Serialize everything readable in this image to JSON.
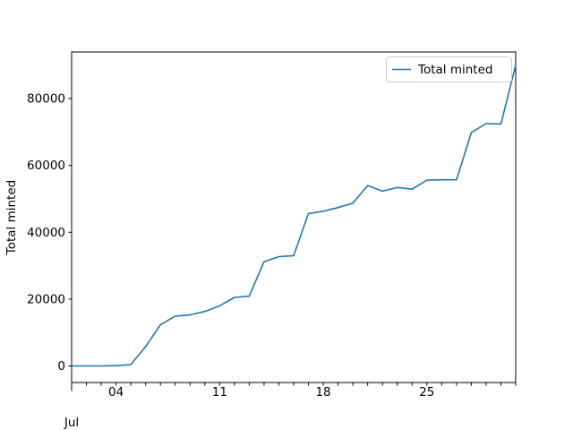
{
  "figure": {
    "background": "#ffffff",
    "ylabel": "Total minted",
    "month_label": "Jul"
  },
  "legend": {
    "label": "Total minted",
    "line_color": "#1f77b4",
    "border_color": "#cccccc",
    "position": "upper right"
  },
  "chart_data": {
    "type": "line",
    "title": "",
    "ylabel": "Total minted",
    "month_label": "Jul",
    "grid": false,
    "legend_position": "upper right",
    "line_color": "#1f77b4",
    "xlim_days": [
      1,
      31
    ],
    "ylim": [
      -4950,
      93950
    ],
    "y_ticks": [
      0,
      20000,
      40000,
      60000,
      80000
    ],
    "y_tick_labels": [
      "0",
      "20000",
      "40000",
      "60000",
      "80000"
    ],
    "x_minor_tick_days": [
      1,
      2,
      3,
      4,
      5,
      6,
      7,
      8,
      9,
      10,
      11,
      12,
      13,
      14,
      15,
      16,
      17,
      18,
      19,
      20,
      21,
      22,
      23,
      24,
      25,
      26,
      27,
      28,
      29,
      30,
      31
    ],
    "x_tick_days": [
      4,
      11,
      18,
      25
    ],
    "x_tick_labels": [
      "04",
      "11",
      "18",
      "25"
    ],
    "series": [
      {
        "name": "Total minted",
        "color": "#1f77b4",
        "x_days": [
          1,
          2,
          3,
          4,
          5,
          6,
          7,
          8,
          9,
          10,
          11,
          12,
          13,
          14,
          15,
          16,
          17,
          18,
          19,
          20,
          21,
          22,
          23,
          24,
          25,
          26,
          27,
          28,
          29,
          30,
          31
        ],
        "values": [
          0,
          0,
          0,
          100,
          400,
          5800,
          12300,
          14900,
          15300,
          16300,
          18000,
          20500,
          20900,
          31200,
          32700,
          33000,
          45600,
          46300,
          47400,
          48700,
          54000,
          52300,
          53400,
          52900,
          55600,
          55700,
          55700,
          69800,
          72500,
          72400,
          90000
        ]
      }
    ]
  }
}
